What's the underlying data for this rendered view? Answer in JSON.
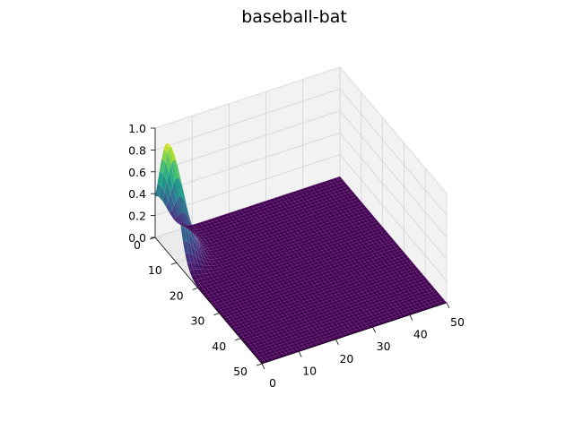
{
  "chart_data": {
    "type": "surface3d",
    "title": "baseball-bat",
    "xlabel": "",
    "ylabel": "",
    "zlabel": "",
    "x_ticks": [
      0,
      10,
      20,
      30,
      40,
      50
    ],
    "y_ticks": [
      0,
      10,
      20,
      30,
      40,
      50
    ],
    "z_ticks": [
      "0.0",
      "0.2",
      "0.4",
      "0.6",
      "0.8",
      "1.0"
    ],
    "xlim": [
      0,
      50
    ],
    "ylim": [
      0,
      50
    ],
    "zlim": [
      0.0,
      1.0
    ],
    "grid": true,
    "colormap": "viridis",
    "grid_resolution": 50,
    "peak": {
      "x": 0,
      "y": 6,
      "z": 1.0
    }
  }
}
